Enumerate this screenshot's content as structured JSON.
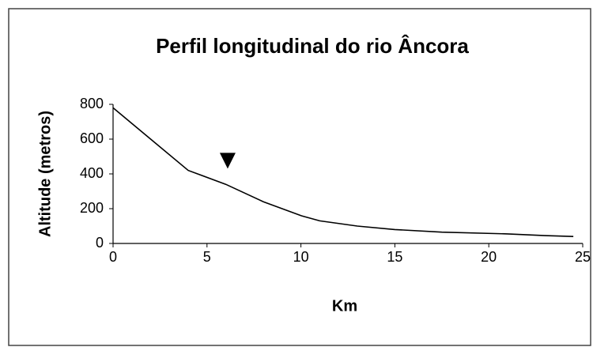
{
  "chart_data": {
    "type": "line",
    "title": "Perfil longitudinal do rio Âncora",
    "x_label": "Km",
    "y_label": "Altitude (metros)",
    "series": [
      {
        "color": "#000000",
        "x": [
          0,
          2,
          4,
          6,
          8,
          10,
          11,
          13,
          15,
          17.5,
          21,
          23,
          24.5
        ],
        "values": [
          780,
          600,
          420,
          340,
          240,
          160,
          130,
          100,
          80,
          65,
          55,
          45,
          40
        ]
      }
    ],
    "marker": {
      "x": 6.1,
      "y": 480,
      "color": "#000000"
    },
    "xlim": [
      0,
      25
    ],
    "xticks": [
      0,
      5,
      10,
      15,
      20,
      25
    ],
    "ylim": [
      0,
      800
    ],
    "yticks": [
      0,
      200,
      400,
      600,
      800
    ],
    "grid": false
  }
}
